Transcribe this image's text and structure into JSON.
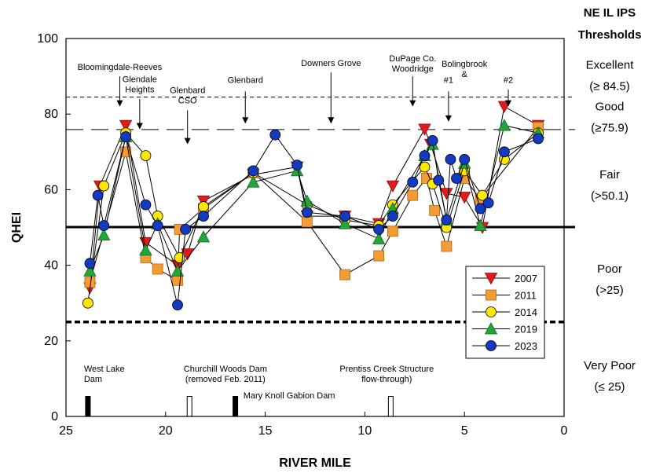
{
  "chart_data": {
    "type": "line",
    "title": "",
    "xlabel": "RIVER MILE",
    "ylabel": "QHEI",
    "xlim": [
      25,
      0
    ],
    "ylim": [
      0,
      100
    ],
    "x_ticks": [
      "25",
      "20",
      "15",
      "10",
      "5",
      "0"
    ],
    "y_ticks": [
      "0",
      "20",
      "40",
      "60",
      "80",
      "100"
    ],
    "grid": false,
    "legend_position": "bottom-right",
    "series": [
      {
        "name": "2007",
        "marker": "triangle-down",
        "color": "#e31a1c",
        "points": [
          [
            23.8,
            34
          ],
          [
            23.3,
            61
          ],
          [
            22.0,
            77
          ],
          [
            21.0,
            46
          ],
          [
            19.4,
            40
          ],
          [
            18.9,
            43
          ],
          [
            18.1,
            57
          ],
          [
            15.6,
            64
          ],
          [
            13.4,
            66
          ],
          [
            12.9,
            53
          ],
          [
            11.0,
            53
          ],
          [
            9.3,
            51
          ],
          [
            8.6,
            61
          ],
          [
            7.0,
            76
          ],
          [
            6.7,
            72
          ],
          [
            5.9,
            59
          ],
          [
            5.0,
            58
          ],
          [
            4.1,
            50
          ],
          [
            3.0,
            82
          ],
          [
            1.3,
            77
          ]
        ]
      },
      {
        "name": "2011",
        "marker": "square",
        "color": "#f39c34",
        "points": [
          [
            23.8,
            35.5
          ],
          [
            22.0,
            70
          ],
          [
            21.0,
            42
          ],
          [
            20.4,
            39
          ],
          [
            19.4,
            36
          ],
          [
            19.3,
            49.5
          ],
          [
            18.1,
            55
          ],
          [
            15.6,
            64.5
          ],
          [
            12.9,
            51.5
          ],
          [
            11.0,
            37.5
          ],
          [
            9.3,
            42.5
          ],
          [
            8.6,
            49
          ],
          [
            7.6,
            58.5
          ],
          [
            6.9,
            63
          ],
          [
            6.5,
            54.5
          ],
          [
            5.9,
            45
          ],
          [
            5.0,
            63
          ],
          [
            4.2,
            57.5
          ],
          [
            1.3,
            76.5
          ]
        ]
      },
      {
        "name": "2014",
        "marker": "circle",
        "color": "#ffe800",
        "points": [
          [
            23.9,
            30
          ],
          [
            23.1,
            61
          ],
          [
            22.0,
            75
          ],
          [
            21.0,
            69
          ],
          [
            20.4,
            53
          ],
          [
            19.3,
            42
          ],
          [
            18.1,
            55.5
          ],
          [
            15.6,
            64.5
          ],
          [
            12.9,
            56
          ],
          [
            11.0,
            52
          ],
          [
            9.3,
            50.5
          ],
          [
            8.6,
            56
          ],
          [
            7.0,
            66
          ],
          [
            6.6,
            61.5
          ],
          [
            5.9,
            50
          ],
          [
            5.0,
            65
          ],
          [
            4.1,
            58.5
          ],
          [
            3.0,
            68
          ],
          [
            1.3,
            75
          ]
        ]
      },
      {
        "name": "2019",
        "marker": "triangle-up",
        "color": "#22a53a",
        "points": [
          [
            23.8,
            38.5
          ],
          [
            23.1,
            48
          ],
          [
            22.0,
            74
          ],
          [
            21.0,
            44
          ],
          [
            20.4,
            51
          ],
          [
            19.4,
            38.5
          ],
          [
            18.1,
            47.5
          ],
          [
            15.6,
            62
          ],
          [
            13.4,
            65
          ],
          [
            12.9,
            57
          ],
          [
            11.0,
            51
          ],
          [
            9.3,
            47
          ],
          [
            8.6,
            55
          ],
          [
            7.0,
            69
          ],
          [
            6.6,
            72
          ],
          [
            5.9,
            52
          ],
          [
            5.0,
            67
          ],
          [
            4.2,
            50.5
          ],
          [
            3.0,
            77
          ],
          [
            1.3,
            75
          ]
        ]
      },
      {
        "name": "2023",
        "marker": "circle",
        "color": "#1439c2",
        "points": [
          [
            23.8,
            40.5
          ],
          [
            23.4,
            58.5
          ],
          [
            23.1,
            50.5
          ],
          [
            22.0,
            74
          ],
          [
            21.0,
            56
          ],
          [
            20.4,
            50.5
          ],
          [
            19.4,
            29.5
          ],
          [
            19.0,
            49.5
          ],
          [
            18.1,
            53
          ],
          [
            15.6,
            65
          ],
          [
            14.5,
            74.5
          ],
          [
            13.4,
            66.5
          ],
          [
            12.9,
            54
          ],
          [
            11.0,
            53
          ],
          [
            9.3,
            49.5
          ],
          [
            8.6,
            53
          ],
          [
            7.6,
            62
          ],
          [
            7.0,
            69
          ],
          [
            6.6,
            73
          ],
          [
            6.3,
            62.5
          ],
          [
            5.9,
            52
          ],
          [
            5.7,
            68
          ],
          [
            5.4,
            63
          ],
          [
            5.0,
            68
          ],
          [
            4.2,
            55
          ],
          [
            3.8,
            56.5
          ],
          [
            3.0,
            70
          ],
          [
            1.3,
            73.5
          ]
        ]
      }
    ],
    "reference_lines": [
      {
        "y": 84.5,
        "style": "dashed-fine"
      },
      {
        "y": 75.9,
        "style": "dashed-long"
      },
      {
        "y": 50.1,
        "style": "solid-thick"
      },
      {
        "y": 25,
        "style": "dashed-thick"
      }
    ],
    "thresholds_header": [
      "NE IL IPS",
      "Thresholds"
    ],
    "thresholds": [
      {
        "label": "Excellent",
        "value": "(≥ 84.5)",
        "y": 92
      },
      {
        "label": "Good",
        "value": "(≥75.9)",
        "y": 81
      },
      {
        "label": "Fair",
        "value": "(>50.1)",
        "y": 63
      },
      {
        "label": "Poor",
        "value": "(>25)",
        "y": 38
      },
      {
        "label": "Very Poor",
        "value": "(≤ 25)",
        "y": 12.5
      }
    ],
    "town_annotations": [
      {
        "lines": [
          "Bloomingdale-Reeves"
        ],
        "x": 22.3,
        "label_y": 91.7,
        "arrow_from": 90,
        "arrow_to": 82
      },
      {
        "lines": [
          "Glendale",
          "Heights"
        ],
        "x": 21.3,
        "label_y": 88.5,
        "arrow_from": 84,
        "arrow_to": 76
      },
      {
        "lines": [
          "Glenbard",
          "CSO"
        ],
        "x": 18.9,
        "label_y": 85.5,
        "arrow_from": 81,
        "arrow_to": 72
      },
      {
        "lines": [
          "Glenbard"
        ],
        "x": 16.0,
        "label_y": 88.3,
        "arrow_from": 86,
        "arrow_to": 77.5
      },
      {
        "lines": [
          "Downers Grove"
        ],
        "x": 11.7,
        "label_y": 92.7,
        "arrow_from": 91,
        "arrow_to": 77.5
      },
      {
        "lines": [
          "DuPage Co.",
          "Woodridge"
        ],
        "x": 7.6,
        "label_y": 94,
        "arrow_from": 90,
        "arrow_to": 82
      },
      {
        "lines": [
          "Bolingbrook",
          "&"
        ],
        "x": 5.0,
        "label_y": 92.5,
        "arrow_from": null,
        "arrow_to": null
      },
      {
        "lines": [
          "#1"
        ],
        "x": 5.8,
        "label_y": 88.3,
        "arrow_from": 86,
        "arrow_to": 78
      },
      {
        "lines": [
          "#2"
        ],
        "x": 2.8,
        "label_y": 88.3,
        "arrow_from": 86.5,
        "arrow_to": 82
      }
    ],
    "structures": [
      {
        "lines": [
          "West Lake",
          "Dam"
        ],
        "x": 23.9,
        "fill": "#000000",
        "label_x": 24.1,
        "label_y": 11.8,
        "anchor": "start"
      },
      {
        "lines": [
          "Churchill Woods Dam",
          "(removed Feb. 2011)"
        ],
        "x": 18.8,
        "fill": "#ffffff",
        "label_x": 17.0,
        "label_y": 11.8,
        "anchor": "middle"
      },
      {
        "lines": [
          "Mary Knoll Gabion Dam"
        ],
        "x": 16.5,
        "fill": "#000000",
        "label_x": 16.1,
        "label_y": 4.8,
        "anchor": "start"
      },
      {
        "lines": [
          "Prentiss Creek Structure",
          "flow-through)"
        ],
        "x": 8.7,
        "fill": "#ffffff",
        "label_x": 8.9,
        "label_y": 11.8,
        "anchor": "middle"
      }
    ]
  }
}
